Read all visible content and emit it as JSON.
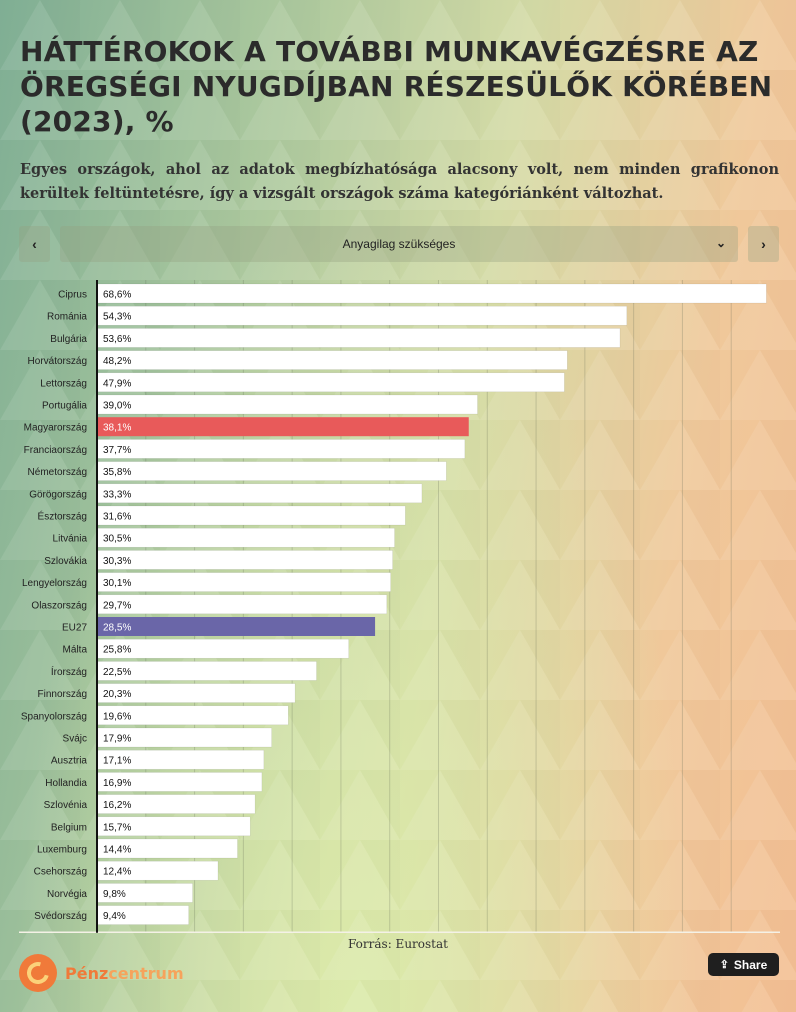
{
  "title": "HÁTTÉROKOK A TOVÁBBI MUNKAVÉGZÉSRE AZ ÖREGSÉGI NYUGDÍJBAN RÉSZESÜLŐK KÖRÉBEN (2023), %",
  "subtitle": "Egyes országok, ahol az adatok megbízhatósága alacsony volt, nem minden grafikonon kerültek feltüntetésre, így a vizsgált országok száma kategóriánként változhat.",
  "nav": {
    "prev_icon": "chevron-left-icon",
    "next_icon": "chevron-right-icon",
    "prev_glyph": "‹",
    "next_glyph": "›"
  },
  "dropdown": {
    "selected": "Anyagilag szükséges",
    "icon": "chevron-down-icon",
    "glyph": "⌄"
  },
  "chart_data": {
    "type": "bar",
    "orientation": "horizontal",
    "categories": [
      "Ciprus",
      "Románia",
      "Bulgária",
      "Horvátország",
      "Lettország",
      "Portugália",
      "Magyarország",
      "Franciaország",
      "Németország",
      "Görögország",
      "Észtország",
      "Litvánia",
      "Szlovákia",
      "Lengyelország",
      "Olaszország",
      "EU27",
      "Málta",
      "Írország",
      "Finnország",
      "Spanyolország",
      "Svájc",
      "Ausztria",
      "Hollandia",
      "Szlovénia",
      "Belgium",
      "Luxemburg",
      "Csehország",
      "Norvégia",
      "Svédország"
    ],
    "values": [
      68.6,
      54.3,
      53.6,
      48.2,
      47.9,
      39.0,
      38.1,
      37.7,
      35.8,
      33.3,
      31.6,
      30.5,
      30.3,
      30.1,
      29.7,
      28.5,
      25.8,
      22.5,
      20.3,
      19.6,
      17.9,
      17.1,
      16.9,
      16.2,
      15.7,
      14.4,
      12.4,
      9.8,
      9.4
    ],
    "labels": [
      "68,6%",
      "54,3%",
      "53,6%",
      "48,2%",
      "47,9%",
      "39,0%",
      "38,1%",
      "37,7%",
      "35,8%",
      "33,3%",
      "31,6%",
      "30,5%",
      "30,3%",
      "30,1%",
      "29,7%",
      "28,5%",
      "25,8%",
      "22,5%",
      "20,3%",
      "19,6%",
      "17,9%",
      "17,1%",
      "16,9%",
      "16,2%",
      "15,7%",
      "14,4%",
      "12,4%",
      "9,8%",
      "9,4%"
    ],
    "highlights": {
      "Magyarország": "#e85a5a",
      "EU27": "#6a66a8"
    },
    "default_color": "#ffffff",
    "xlim": [
      0,
      70
    ],
    "grid": true
  },
  "source": "Forrás: Eurostat",
  "logo": {
    "part1": "Pénz",
    "part2": "centrum"
  },
  "share": {
    "label": "Share",
    "icon": "share-icon",
    "glyph": "⇪"
  }
}
